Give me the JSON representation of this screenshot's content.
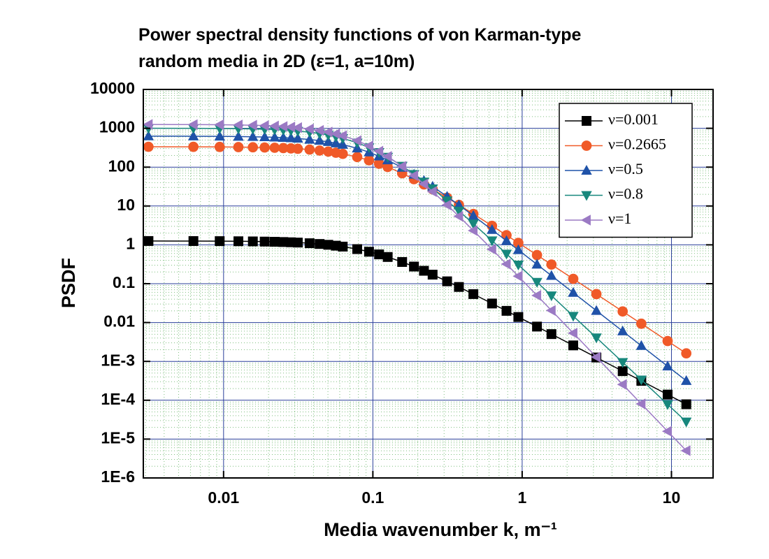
{
  "chart_data": {
    "type": "scatter",
    "title": [
      "Power spectral density functions of von Karman-type",
      "random media in 2D (ε=1, a=10m)"
    ],
    "x_label": "Media wavenumber k, m⁻¹",
    "y_label": "PSDF",
    "log_x": true,
    "log_y": true,
    "grid": true,
    "minor_grid": true,
    "legend": "upper right",
    "xlim": [
      0.0029,
      19
    ],
    "ylim": [
      1e-06,
      10000
    ],
    "xticks": [
      0.01,
      0.1,
      1,
      10
    ],
    "yticks": [
      {
        "value": 1e-06,
        "label": "1E-6"
      },
      {
        "value": 1e-05,
        "label": "1E-5"
      },
      {
        "value": 0.0001,
        "label": "1E-4"
      },
      {
        "value": 0.001,
        "label": "1E-3"
      },
      0.01,
      0.1,
      1,
      10,
      100,
      1000,
      10000
    ],
    "x": [
      0.00314,
      0.00628,
      0.00942,
      0.01257,
      0.01571,
      0.01885,
      0.02199,
      0.02513,
      0.02827,
      0.03142,
      0.0377,
      0.04398,
      0.05027,
      0.05655,
      0.06283,
      0.07854,
      0.09425,
      0.11,
      0.1257,
      0.1571,
      0.1885,
      0.2199,
      0.2513,
      0.3142,
      0.377,
      0.4712,
      0.6283,
      0.7854,
      0.9425,
      1.257,
      1.571,
      2.199,
      3.142,
      4.712,
      6.283,
      9.425,
      12.57
    ],
    "series": [
      {
        "name": "ν=0.001",
        "color": "#000000",
        "marker": "square",
        "values": [
          1.255,
          1.252,
          1.246,
          1.237,
          1.226,
          1.213,
          1.199,
          1.182,
          1.164,
          1.144,
          1.1,
          1.053,
          1.003,
          0.952,
          0.901,
          0.777,
          0.665,
          0.568,
          0.487,
          0.362,
          0.276,
          0.215,
          0.171,
          0.115,
          0.0824,
          0.054,
          0.0309,
          0.02,
          0.0139,
          0.00787,
          0.00504,
          0.00258,
          0.00126,
          0.000561,
          0.000316,
          0.00014,
          7.88e-05
        ]
      },
      {
        "name": "ν=0.2665",
        "color": "#f05a28",
        "marker": "circle",
        "values": [
          334.5,
          333.3,
          331.2,
          328.3,
          324.7,
          320.4,
          315.5,
          309.9,
          303.8,
          297.3,
          283.0,
          267.7,
          251.8,
          235.7,
          219.8,
          182.2,
          149.7,
          122.7,
          100.9,
          69.36,
          49.11,
          35.87,
          26.93,
          16.31,
          10.66,
          6.243,
          3.086,
          1.773,
          1.125,
          0.546,
          0.311,
          0.133,
          0.054,
          0.0193,
          0.00933,
          0.00334,
          0.00161
        ]
      },
      {
        "name": "ν=0.5",
        "color": "#1f52a8",
        "marker": "triangle-up",
        "values": [
          627.4,
          624.6,
          620.0,
          613.7,
          605.8,
          596.3,
          585.3,
          573.1,
          559.8,
          545.6,
          514.8,
          481.9,
          448.2,
          414.4,
          381.4,
          305.6,
          242.1,
          191.4,
          151.7,
          97.31,
          64.67,
          44.57,
          31.75,
          17.53,
          10.59,
          5.618,
          2.44,
          1.266,
          0.738,
          0.314,
          0.161,
          0.0589,
          0.0202,
          0.006,
          0.00253,
          0.00075,
          0.000317
        ]
      },
      {
        "name": "ν=0.8",
        "color": "#17877c",
        "marker": "triangle-down",
        "values": [
          1003.5,
          998.2,
          989.4,
          977.3,
          962.1,
          944.0,
          923.3,
          900.3,
          875.3,
          848.6,
          791.4,
          731.2,
          670.2,
          610.1,
          552.3,
          423.3,
          320.2,
          241.4,
          182.7,
          107.2,
          65.66,
          41.99,
          27.96,
          13.71,
          7.487,
          3.5,
          1.287,
          0.586,
          0.306,
          0.11,
          0.0493,
          0.0147,
          0.00409,
          0.000952,
          0.000338,
          7.85e-05,
          2.79e-05
        ]
      },
      {
        "name": "ν=1",
        "color": "#9b7ac4",
        "marker": "triangle-left",
        "values": [
          1254.1,
          1246.7,
          1234.6,
          1217.8,
          1196.8,
          1171.8,
          1143.3,
          1111.7,
          1077.4,
          1041.0,
          963.3,
          882.3,
          800.8,
          721.4,
          645.9,
          480.7,
          352.4,
          257.5,
          188.9,
          104.5,
          60.62,
          36.89,
          23.47,
          10.64,
          5.43,
          2.333,
          0.767,
          0.32,
          0.156,
          0.0498,
          0.0205,
          0.00535,
          0.00129,
          0.000255,
          8.06e-05,
          1.59e-05,
          5.04e-06
        ]
      }
    ]
  }
}
